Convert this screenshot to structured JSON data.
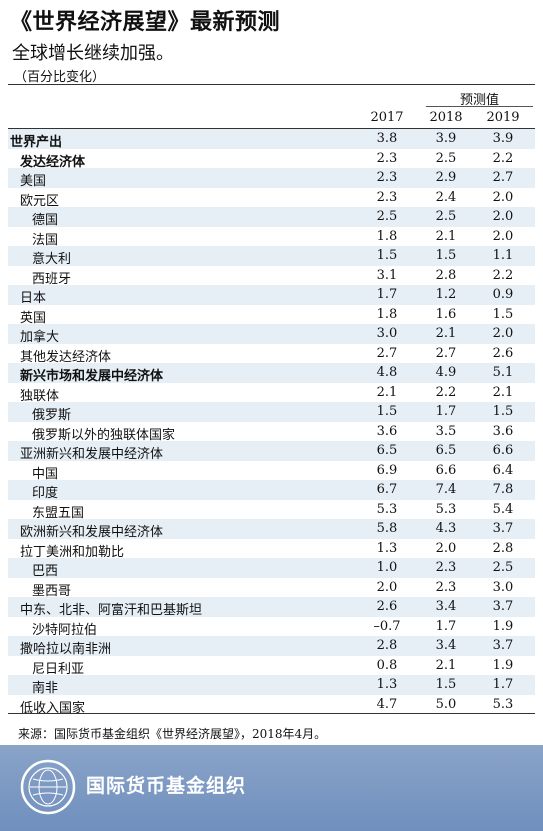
{
  "title": "《世界经济展望》最新预测",
  "subtitle": "全球增长继续加强。",
  "unit_note": "（百分比变化）",
  "projections_label": "预测值",
  "years": [
    "2017",
    "2018",
    "2019"
  ],
  "rows": [
    {
      "label": "世界产出",
      "values": [
        "3.8",
        "3.9",
        "3.9"
      ]
    },
    {
      "label": "发达经济体",
      "values": [
        "2.3",
        "2.5",
        "2.2"
      ]
    },
    {
      "label": "美国",
      "values": [
        "2.3",
        "2.9",
        "2.7"
      ]
    },
    {
      "label": "欧元区",
      "values": [
        "2.3",
        "2.4",
        "2.0"
      ]
    },
    {
      "label": "德国",
      "values": [
        "2.5",
        "2.5",
        "2.0"
      ]
    },
    {
      "label": "法国",
      "values": [
        "1.8",
        "2.1",
        "2.0"
      ]
    },
    {
      "label": "意大利",
      "values": [
        "1.5",
        "1.5",
        "1.1"
      ]
    },
    {
      "label": "西班牙",
      "values": [
        "3.1",
        "2.8",
        "2.2"
      ]
    },
    {
      "label": "日本",
      "values": [
        "1.7",
        "1.2",
        "0.9"
      ]
    },
    {
      "label": "英国",
      "values": [
        "1.8",
        "1.6",
        "1.5"
      ]
    },
    {
      "label": "加拿大",
      "values": [
        "3.0",
        "2.1",
        "2.0"
      ]
    },
    {
      "label": "其他发达经济体",
      "values": [
        "2.7",
        "2.7",
        "2.6"
      ]
    },
    {
      "label": "新兴市场和发展中经济体",
      "values": [
        "4.8",
        "4.9",
        "5.1"
      ]
    },
    {
      "label": "独联体",
      "values": [
        "2.1",
        "2.2",
        "2.1"
      ]
    },
    {
      "label": "俄罗斯",
      "values": [
        "1.5",
        "1.7",
        "1.5"
      ]
    },
    {
      "label": "俄罗斯以外的独联体国家",
      "values": [
        "3.6",
        "3.5",
        "3.6"
      ]
    },
    {
      "label": "亚洲新兴和发展中经济体",
      "values": [
        "6.5",
        "6.5",
        "6.6"
      ]
    },
    {
      "label": "中国",
      "values": [
        "6.9",
        "6.6",
        "6.4"
      ]
    },
    {
      "label": "印度",
      "values": [
        "6.7",
        "7.4",
        "7.8"
      ]
    },
    {
      "label": "东盟五国",
      "values": [
        "5.3",
        "5.3",
        "5.4"
      ]
    },
    {
      "label": "欧洲新兴和发展中经济体",
      "values": [
        "5.8",
        "4.3",
        "3.7"
      ]
    },
    {
      "label": "拉丁美洲和加勒比",
      "values": [
        "1.3",
        "2.0",
        "2.8"
      ]
    },
    {
      "label": "巴西",
      "values": [
        "1.0",
        "2.3",
        "2.5"
      ]
    },
    {
      "label": "墨西哥",
      "values": [
        "2.0",
        "2.3",
        "3.0"
      ]
    },
    {
      "label": "中东、北非、阿富汗和巴基斯坦",
      "values": [
        "2.6",
        "3.4",
        "3.7"
      ]
    },
    {
      "label": "沙特阿拉伯",
      "values": [
        "–0.7",
        "1.7",
        "1.9"
      ]
    },
    {
      "label": "撒哈拉以南非洲",
      "values": [
        "2.8",
        "3.4",
        "3.7"
      ]
    },
    {
      "label": "尼日利亚",
      "values": [
        "0.8",
        "2.1",
        "1.9"
      ]
    },
    {
      "label": "南非",
      "values": [
        "1.3",
        "1.5",
        "1.7"
      ]
    },
    {
      "label": "低收入国家",
      "values": [
        "4.7",
        "5.0",
        "5.3"
      ]
    }
  ],
  "source": "来源：国际货币基金组织《世界经济展望》，2018年4月。",
  "footer": {
    "org_name": "国际货币基金组织",
    "seal_icon": "imf-seal-icon"
  },
  "colors": {
    "row_shade": "#e6eff6",
    "footer_bg": "#7b98c4"
  }
}
